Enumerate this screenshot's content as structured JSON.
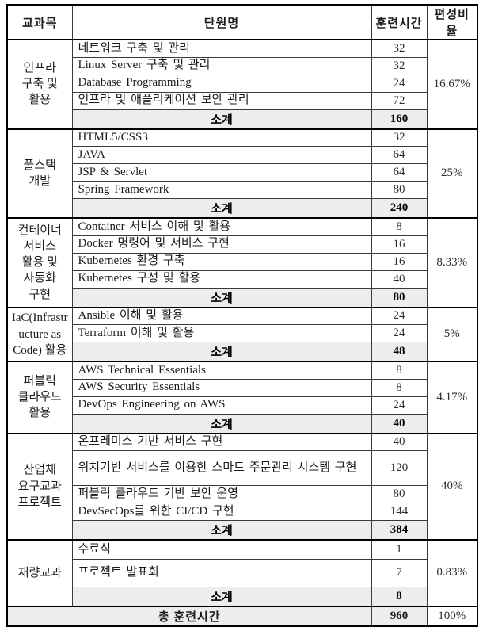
{
  "table": {
    "headers": {
      "subject": "교과목",
      "unit": "단원명",
      "hours": "훈련시간",
      "ratio": "편성비율"
    },
    "subtotal_label": "소계",
    "groups": [
      {
        "subject": "인프라\n구축 및\n활용",
        "ratio": "16.67%",
        "subtotal": "160",
        "items": [
          {
            "name": "네트워크 구축 및 관리",
            "hours": "32"
          },
          {
            "name": "Linux Server 구축 및 관리",
            "hours": "32"
          },
          {
            "name": "Database Programming",
            "hours": "24"
          },
          {
            "name": "인프라 및 애플리케이션 보안 관리",
            "hours": "72"
          }
        ]
      },
      {
        "subject": "풀스택\n개발",
        "ratio": "25%",
        "subtotal": "240",
        "items": [
          {
            "name": "HTML5/CSS3",
            "hours": "32"
          },
          {
            "name": "JAVA",
            "hours": "64"
          },
          {
            "name": "JSP & Servlet",
            "hours": "64"
          },
          {
            "name": "Spring Framework",
            "hours": "80"
          }
        ]
      },
      {
        "subject": "컨테이너\n서비스\n활용 및\n자동화\n구현",
        "ratio": "8.33%",
        "subtotal": "80",
        "items": [
          {
            "name": "Container 서비스 이해 및 활용",
            "hours": "8"
          },
          {
            "name": "Docker 명령어 및 서비스 구현",
            "hours": "16"
          },
          {
            "name": "Kubernetes 환경 구축",
            "hours": "16"
          },
          {
            "name": "Kubernetes 구성 및 활용",
            "hours": "40"
          }
        ]
      },
      {
        "subject": "IaC(Infrastructure as Code) 활용",
        "ratio": "5%",
        "subtotal": "48",
        "items": [
          {
            "name": "Ansible 이해 및 활용",
            "hours": "24"
          },
          {
            "name": "Terraform 이해 및 활용",
            "hours": "24"
          }
        ]
      },
      {
        "subject": "퍼블릭\n클라우드\n활용",
        "ratio": "4.17%",
        "subtotal": "40",
        "items": [
          {
            "name": "AWS Technical Essentials",
            "hours": "8"
          },
          {
            "name": "AWS Security Essentials",
            "hours": "8"
          },
          {
            "name": "DevOps Engineering on AWS",
            "hours": "24"
          }
        ]
      },
      {
        "subject": "산업체\n요구교과\n프로젝트",
        "ratio": "40%",
        "subtotal": "384",
        "items": [
          {
            "name": "온프레미스 기반 서비스 구현",
            "hours": "40"
          },
          {
            "name": "위치기반 서비스를 이용한 스마트 주문관리 시스템 구현",
            "hours": "120"
          },
          {
            "name": "퍼블릭 클라우드 기반 보안 운영",
            "hours": "80"
          },
          {
            "name": "DevSecOps를 위한 CI/CD 구현",
            "hours": "144"
          }
        ]
      },
      {
        "subject": "재량교과",
        "ratio": "0.83%",
        "subtotal": "8",
        "items": [
          {
            "name": "수료식",
            "hours": "1"
          },
          {
            "name": "프로젝트 발표회",
            "hours": "7"
          }
        ]
      }
    ],
    "footer": {
      "label": "총 훈련시간",
      "hours": "960",
      "ratio": "100%"
    }
  },
  "colors": {
    "subtotal_background": "#ededed",
    "border": "#000000",
    "text": "#1a1a1a"
  }
}
